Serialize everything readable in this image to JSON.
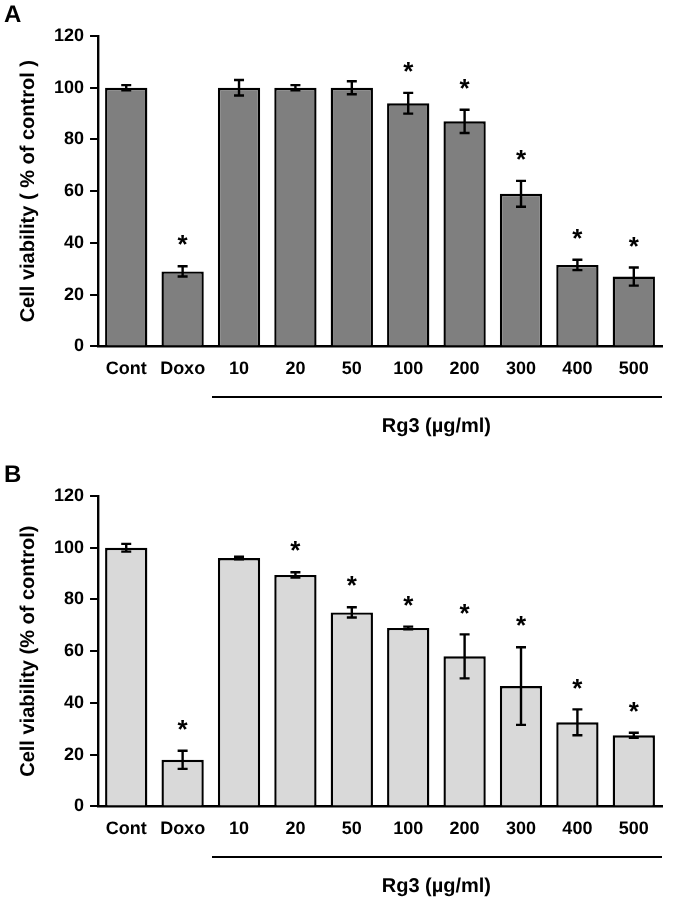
{
  "chart_data": [
    {
      "type": "bar",
      "title": "A",
      "xlabel": "Rg3 (µg/ml)",
      "ylabel": "Cell viability ( % of control )",
      "categories": [
        "Cont",
        "Doxo",
        "10",
        "20",
        "50",
        "100",
        "200",
        "300",
        "400",
        "500"
      ],
      "series": [
        {
          "color": "#7f7f7f",
          "values": [
            100,
            29,
            100,
            100,
            100,
            94,
            87,
            59,
            31.5,
            27
          ],
          "errors": [
            1,
            2,
            3,
            1,
            2.5,
            4,
            4.5,
            5,
            2,
            3.5
          ]
        }
      ],
      "ylim": [
        0,
        120
      ],
      "yticks": [
        0,
        20,
        40,
        60,
        80,
        100,
        120
      ],
      "grid": false,
      "legend": false,
      "annotations": [
        {
          "text": "*",
          "x": "Doxo",
          "y": 29
        },
        {
          "text": "*",
          "x": "100",
          "y": 94
        },
        {
          "text": "*",
          "x": "200",
          "y": 87
        },
        {
          "text": "*",
          "x": "300",
          "y": 59
        },
        {
          "text": "*",
          "x": "400",
          "y": 31.5
        },
        {
          "text": "*",
          "x": "500",
          "y": 27
        }
      ]
    },
    {
      "type": "bar",
      "title": "B",
      "xlabel": "Rg3 (µg/ml)",
      "ylabel": "Cell viability (% of control)",
      "categories": [
        "Cont",
        "Doxo",
        "10",
        "20",
        "50",
        "100",
        "200",
        "300",
        "400",
        "500"
      ],
      "series": [
        {
          "color": "#d9d9d9",
          "values": [
            100,
            18,
            96,
            89.5,
            75,
            69,
            58,
            46.5,
            32.5,
            27.5
          ],
          "errors": [
            1.5,
            3.5,
            0.5,
            1,
            2,
            0.5,
            8.5,
            15,
            5,
            1
          ]
        }
      ],
      "ylim": [
        0,
        120
      ],
      "yticks": [
        0,
        20,
        40,
        60,
        80,
        100,
        120
      ],
      "grid": false,
      "legend": false,
      "annotations": [
        {
          "text": "*",
          "x": "Doxo",
          "y": 18
        },
        {
          "text": "*",
          "x": "20",
          "y": 89.5
        },
        {
          "text": "*",
          "x": "50",
          "y": 75
        },
        {
          "text": "*",
          "x": "100",
          "y": 69
        },
        {
          "text": "*",
          "x": "200",
          "y": 58
        },
        {
          "text": "*",
          "x": "300",
          "y": 46.5
        },
        {
          "text": "*",
          "x": "400",
          "y": 32.5
        },
        {
          "text": "*",
          "x": "500",
          "y": 27.5
        }
      ]
    }
  ]
}
